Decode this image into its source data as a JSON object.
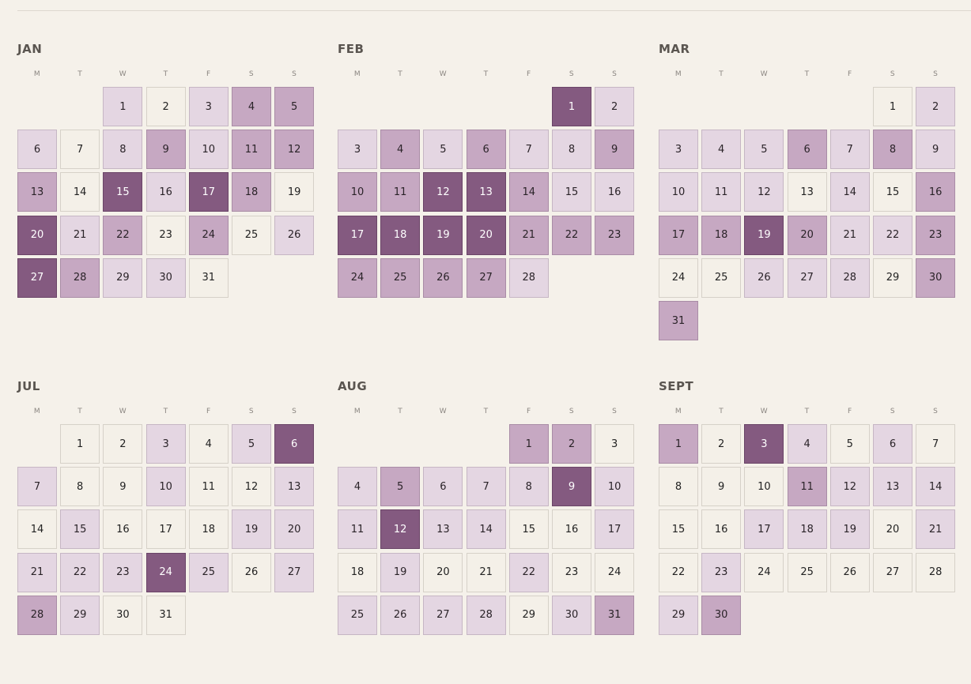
{
  "weekday_labels": [
    "M",
    "T",
    "W",
    "T",
    "F",
    "S",
    "S"
  ],
  "palette": {
    "level0": "#f4f0e8",
    "level1": "#e4d6e2",
    "level2": "#c6a8c2",
    "level3": "#845a80"
  },
  "months": [
    {
      "name": "JAN",
      "start": 2,
      "levels": [
        1,
        0,
        1,
        2,
        2,
        1,
        0,
        1,
        2,
        1,
        2,
        2,
        2,
        0,
        3,
        1,
        3,
        2,
        0,
        3,
        1,
        2,
        0,
        2,
        0,
        1,
        3,
        2,
        1,
        1,
        0
      ]
    },
    {
      "name": "FEB",
      "start": 5,
      "levels": [
        3,
        1,
        1,
        2,
        1,
        2,
        1,
        1,
        2,
        2,
        2,
        3,
        3,
        2,
        1,
        1,
        3,
        3,
        3,
        3,
        2,
        2,
        2,
        2,
        2,
        2,
        2,
        1
      ]
    },
    {
      "name": "MAR",
      "start": 5,
      "levels": [
        0,
        1,
        1,
        1,
        1,
        2,
        1,
        2,
        1,
        1,
        1,
        1,
        0,
        1,
        0,
        2,
        2,
        2,
        3,
        2,
        1,
        1,
        2,
        0,
        0,
        1,
        1,
        1,
        0,
        2,
        2
      ]
    },
    {
      "name": "JUL",
      "start": 1,
      "levels": [
        0,
        0,
        1,
        0,
        1,
        3,
        1,
        0,
        0,
        1,
        0,
        0,
        1,
        0,
        1,
        0,
        0,
        0,
        1,
        1,
        1,
        1,
        1,
        3,
        1,
        0,
        1,
        2,
        1,
        0,
        0
      ]
    },
    {
      "name": "AUG",
      "start": 4,
      "levels": [
        2,
        2,
        0,
        1,
        2,
        1,
        1,
        1,
        3,
        1,
        1,
        3,
        1,
        1,
        0,
        0,
        1,
        0,
        1,
        0,
        0,
        1,
        0,
        0,
        1,
        1,
        1,
        1,
        0,
        1,
        2
      ]
    },
    {
      "name": "SEPT",
      "start": 0,
      "levels": [
        2,
        0,
        3,
        1,
        0,
        1,
        0,
        0,
        0,
        0,
        2,
        1,
        1,
        1,
        0,
        0,
        1,
        1,
        1,
        0,
        1,
        0,
        1,
        0,
        0,
        0,
        0,
        0,
        1,
        2
      ]
    }
  ]
}
